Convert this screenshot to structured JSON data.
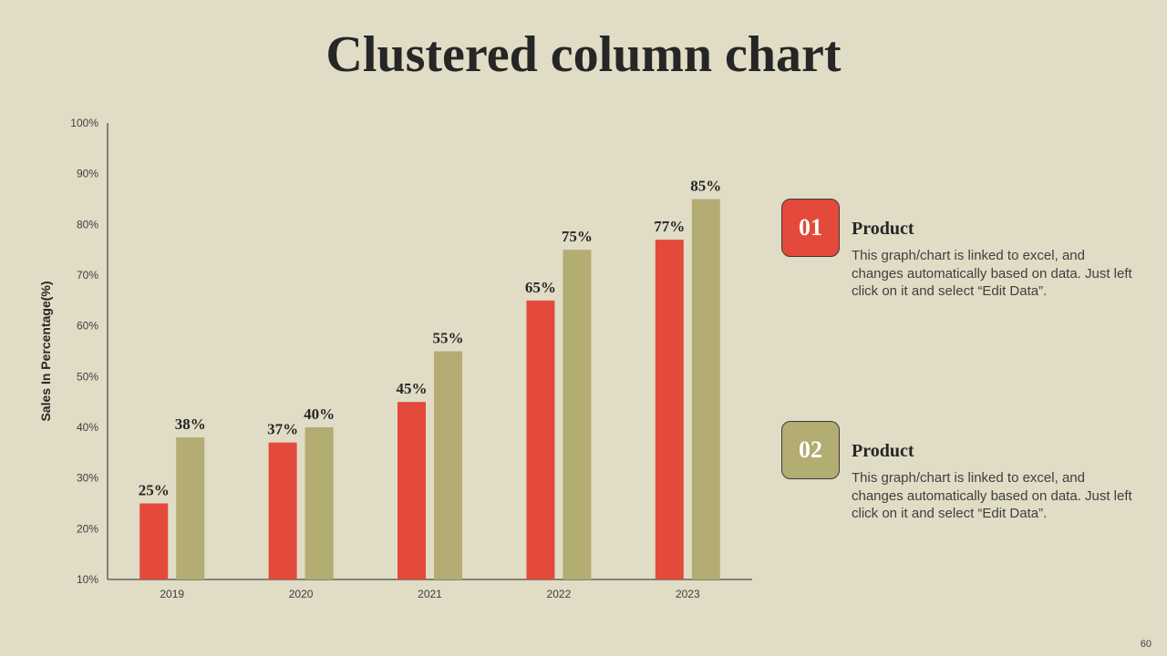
{
  "title": "Clustered column chart",
  "page_number": "60",
  "colors": {
    "background": "#e0dcc5",
    "series_1": "#e44a3b",
    "series_2": "#b3ac73"
  },
  "legend": [
    {
      "number": "01",
      "heading": "Product",
      "description": "This graph/chart is linked to excel, and changes automatically based on data. Just left click on it and select “Edit Data”.",
      "color": "#e44a3b"
    },
    {
      "number": "02",
      "heading": "Product",
      "description": "This graph/chart is linked to excel, and changes automatically based on data. Just left click on it and select “Edit Data”.",
      "color": "#b3ac73"
    }
  ],
  "chart_data": {
    "type": "bar",
    "title": "",
    "xlabel": "",
    "ylabel": "Sales In Percentage(%)",
    "categories": [
      "2019",
      "2020",
      "2021",
      "2022",
      "2023"
    ],
    "series": [
      {
        "values": [
          25,
          37,
          45,
          65,
          77
        ],
        "color": "#e44a3b"
      },
      {
        "values": [
          38,
          40,
          55,
          75,
          85
        ],
        "color": "#b3ac73"
      }
    ],
    "ylim": [
      10,
      100
    ],
    "yticks": [
      10,
      20,
      30,
      40,
      50,
      60,
      70,
      80,
      90,
      100
    ],
    "tick_suffix": "%",
    "data_label_suffix": "%",
    "grid": false,
    "legend_position": "right"
  }
}
